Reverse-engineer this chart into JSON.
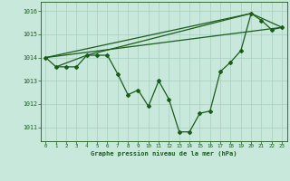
{
  "background_color": "#c8e8dc",
  "grid_color": "#a8cfc0",
  "line_color": "#1a5c1a",
  "xlabel": "Graphe pression niveau de la mer (hPa)",
  "ylim": [
    1010.4,
    1016.4
  ],
  "xlim": [
    -0.5,
    23.5
  ],
  "yticks": [
    1011,
    1012,
    1013,
    1014,
    1015,
    1016
  ],
  "xticks": [
    0,
    1,
    2,
    3,
    4,
    5,
    6,
    7,
    8,
    9,
    10,
    11,
    12,
    13,
    14,
    15,
    16,
    17,
    18,
    19,
    20,
    21,
    22,
    23
  ],
  "main_x": [
    0,
    1,
    2,
    3,
    4,
    5,
    6,
    7,
    8,
    9,
    10,
    11,
    12,
    13,
    14,
    15,
    16,
    17,
    18,
    19,
    20,
    21,
    22,
    23
  ],
  "main_y": [
    1014.0,
    1013.6,
    1013.6,
    1013.6,
    1014.1,
    1014.1,
    1014.1,
    1013.3,
    1012.4,
    1012.6,
    1011.9,
    1013.0,
    1012.2,
    1010.8,
    1010.8,
    1011.6,
    1011.7,
    1013.4,
    1013.8,
    1014.3,
    1015.9,
    1015.6,
    1015.2,
    1015.3
  ],
  "line1_x": [
    0,
    20,
    23
  ],
  "line1_y": [
    1014.0,
    1015.9,
    1015.3
  ],
  "line2_x": [
    0,
    23
  ],
  "line2_y": [
    1014.0,
    1015.3
  ],
  "line3_x": [
    1,
    4,
    20
  ],
  "line3_y": [
    1013.6,
    1014.1,
    1015.9
  ]
}
